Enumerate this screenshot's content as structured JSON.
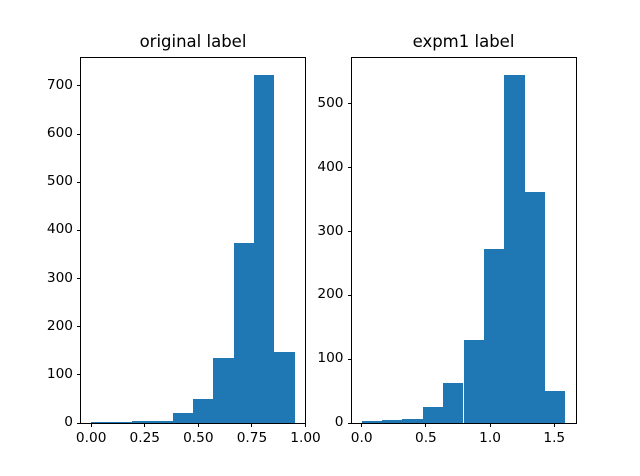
{
  "figure": {
    "background": "#ffffff",
    "bar_color": "#1f77b4",
    "axis_color": "#000000",
    "text_color": "#000000"
  },
  "chart_data": [
    {
      "type": "bar",
      "subtype": "histogram",
      "title": "original label",
      "bin_edges": [
        0.0,
        0.095,
        0.19,
        0.285,
        0.38,
        0.475,
        0.57,
        0.665,
        0.76,
        0.855,
        0.95
      ],
      "values": [
        2,
        2,
        4,
        4,
        20,
        50,
        135,
        374,
        722,
        147
      ],
      "xlim": [
        -0.0475,
        0.9975
      ],
      "ylim": [
        0,
        758
      ],
      "xtick_values": [
        0.0,
        0.25,
        0.5,
        0.75,
        1.0
      ],
      "xtick_labels": [
        "0.00",
        "0.25",
        "0.50",
        "0.75",
        "1.00"
      ],
      "ytick_values": [
        0,
        100,
        200,
        300,
        400,
        500,
        600,
        700
      ],
      "ytick_labels": [
        "0",
        "100",
        "200",
        "300",
        "400",
        "500",
        "600",
        "700"
      ],
      "xlabel": "",
      "ylabel": "",
      "grid": false,
      "legend": null
    },
    {
      "type": "bar",
      "subtype": "histogram",
      "title": "expm1 label",
      "bin_edges": [
        0.0,
        0.1586,
        0.3172,
        0.4758,
        0.6344,
        0.793,
        0.9516,
        1.1102,
        1.2688,
        1.4274,
        1.586
      ],
      "values": [
        3,
        5,
        6,
        25,
        62,
        130,
        272,
        545,
        362,
        50
      ],
      "xlim": [
        -0.0793,
        1.6653
      ],
      "ylim": [
        0,
        572
      ],
      "xtick_values": [
        0.0,
        0.5,
        1.0,
        1.5
      ],
      "xtick_labels": [
        "0.0",
        "0.5",
        "1.0",
        "1.5"
      ],
      "ytick_values": [
        0,
        100,
        200,
        300,
        400,
        500
      ],
      "ytick_labels": [
        "0",
        "100",
        "200",
        "300",
        "400",
        "500"
      ],
      "xlabel": "",
      "ylabel": "",
      "grid": false,
      "legend": null
    }
  ]
}
